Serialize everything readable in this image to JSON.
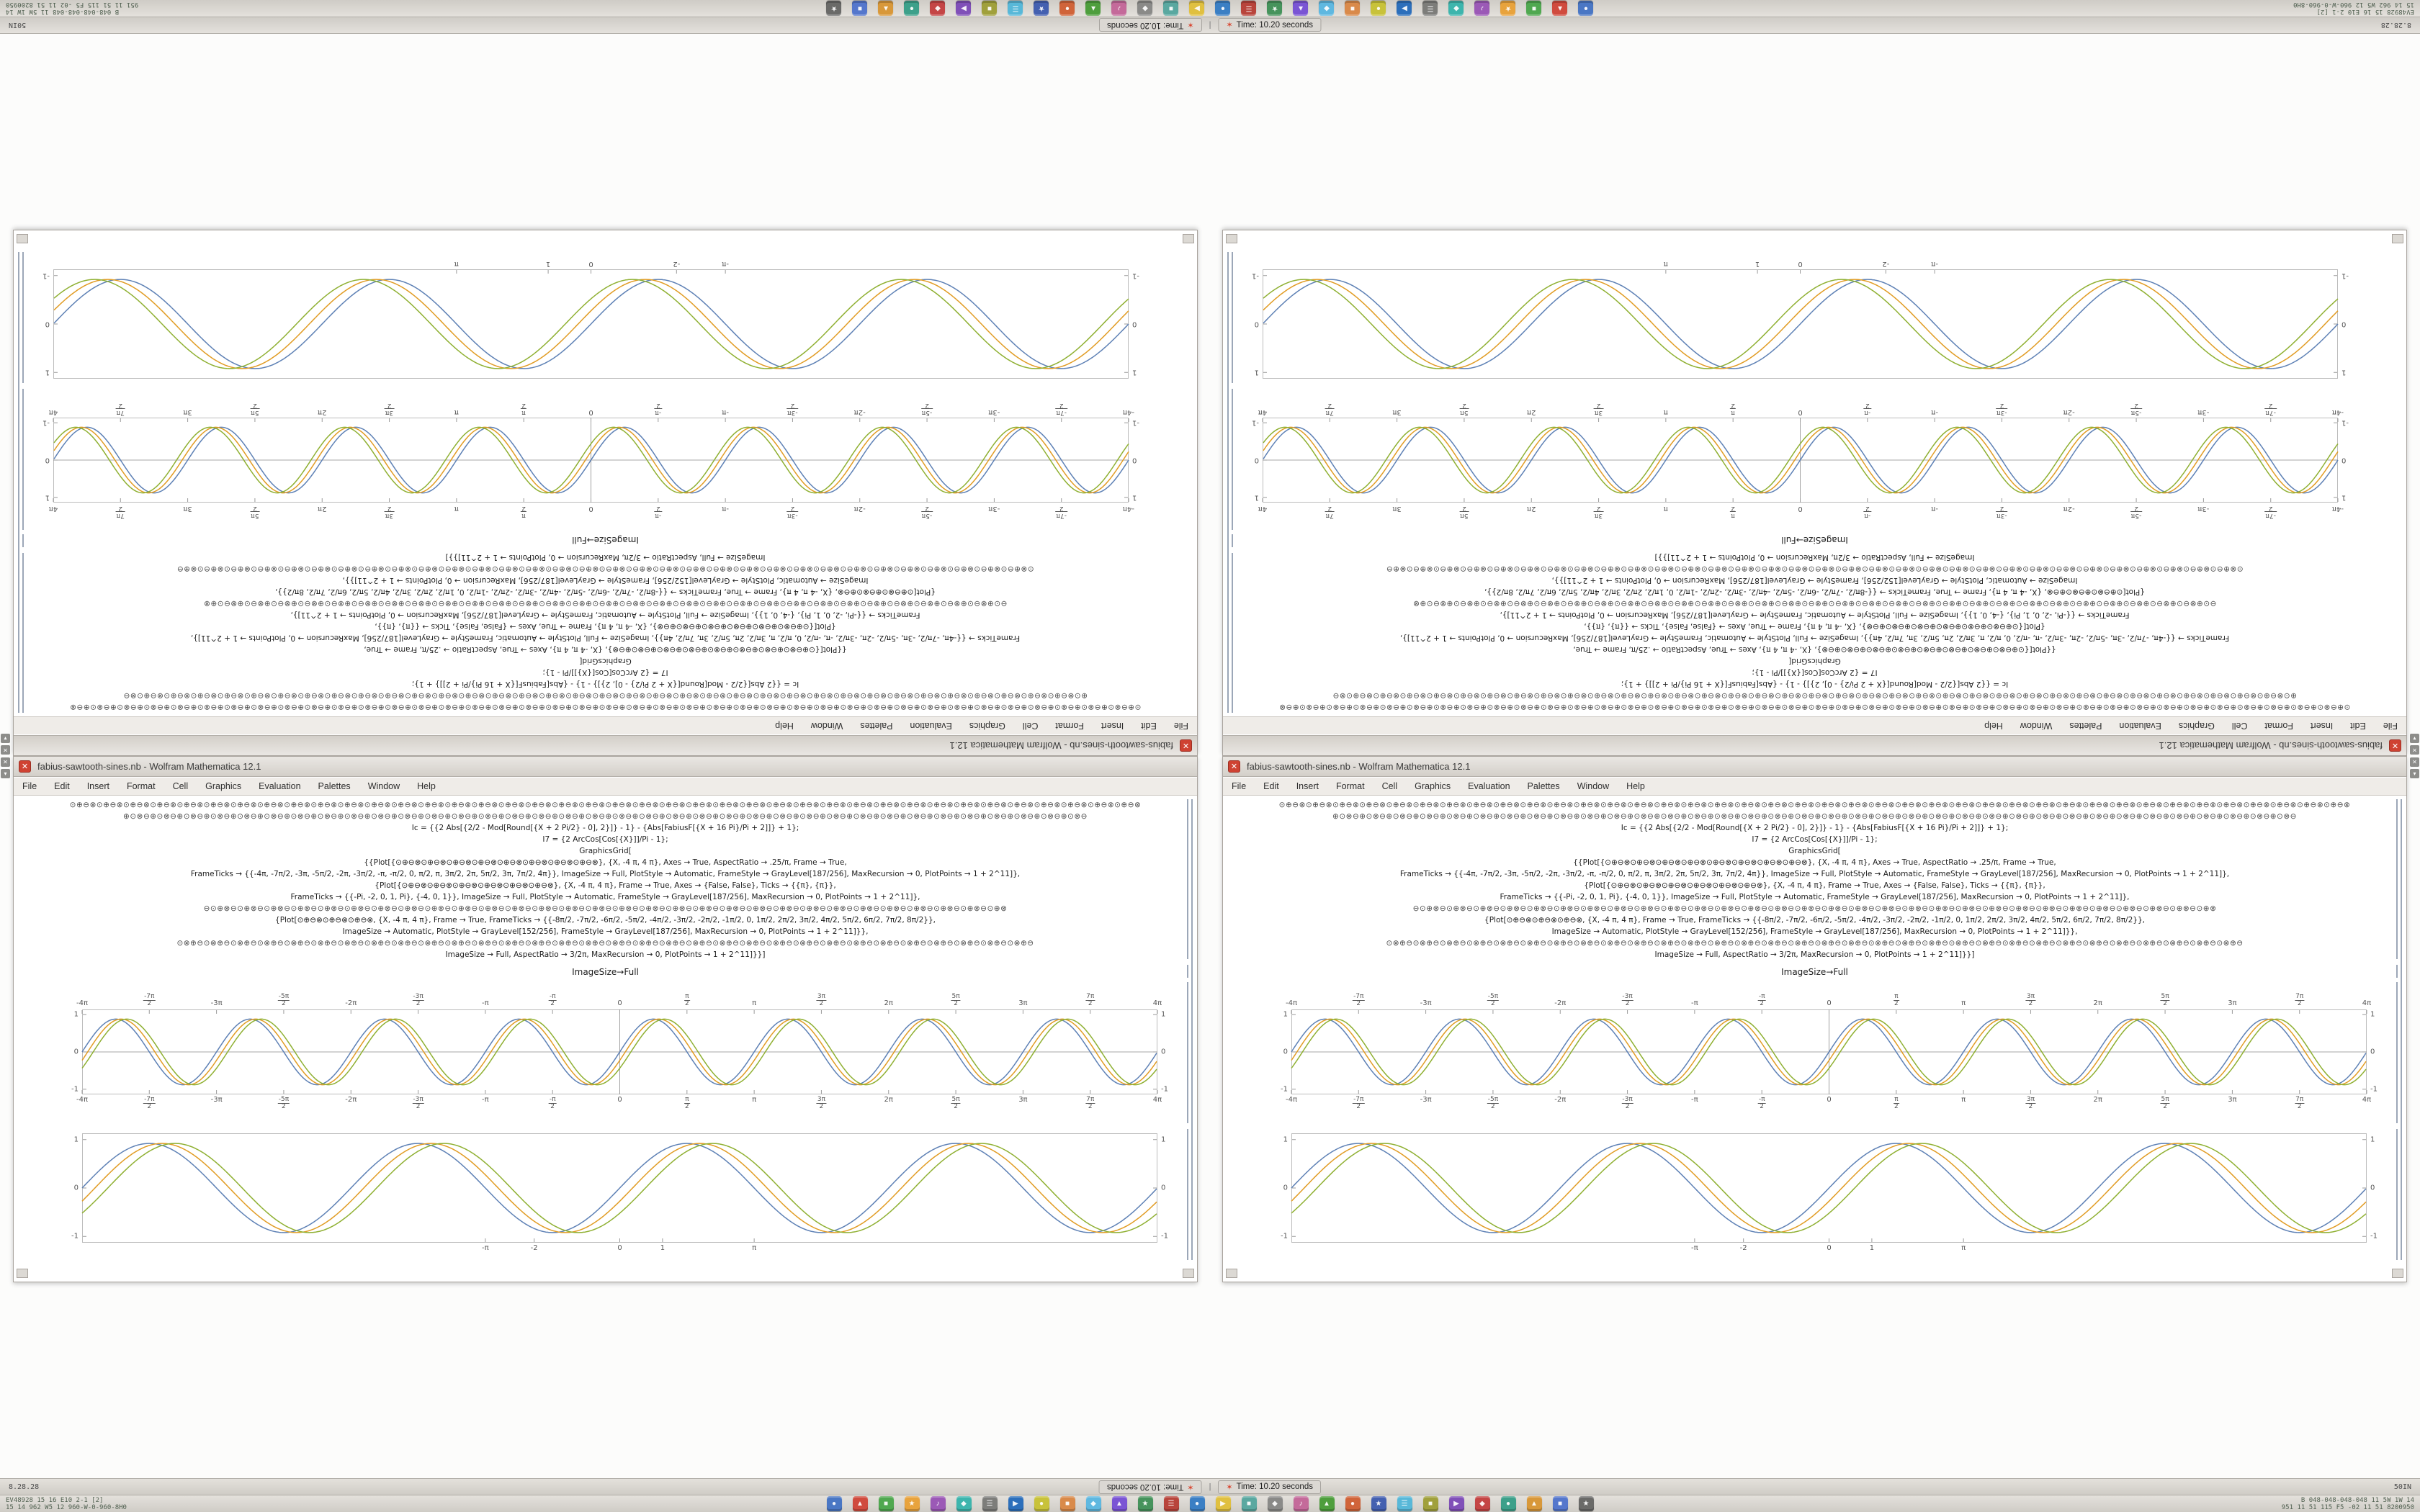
{
  "colors": {
    "desktop_bg": "#fcfcfb",
    "close_button": "#cf4232",
    "frame_gray": "#bcbcbc",
    "series_blue": "#5e81b5",
    "series_orange": "#e19c24",
    "series_olive": "#8fb032"
  },
  "window": {
    "title": "fabius-sawtooth-sines.nb - Wolfram Mathematica 12.1",
    "close_glyph": "✕",
    "menu_items": [
      "File",
      "Edit",
      "Insert",
      "Format",
      "Cell",
      "Graphics",
      "Evaluation",
      "Palettes",
      "Window",
      "Help"
    ],
    "code_cell": {
      "lines": [
        {
          "text": "⊙⊕⊖⊗",
          "repeat": 40,
          "dim": true
        },
        {
          "text": "⊕⊙⊗⊖",
          "repeat": 36,
          "dim": true
        },
        {
          "text": "Ic = {{2 Abs[{2/2 - Mod[Round[{X + 2 Pi/2} - 0], 2}]} - 1} - {Abs[FabiusF[{X + 16 Pi}/Pi + 2]]} + 1};"
        },
        {
          "text": "I7 = {2 ArcCos[Cos[{X}]]/Pi - 1};"
        },
        {
          "text": "GraphicsGrid["
        },
        {
          "text": "{{Plot[{⊙⊕⊖⊗⊙⊕⊖⊗⊙⊕⊖⊗⊙⊕⊖⊗⊙⊕⊖⊗⊙⊕⊖⊗⊙⊕⊖⊗⊙⊕⊖⊗}, {X, -4 π, 4 π}, Axes → True, AspectRatio → .25/π, Frame → True,"
        },
        {
          "text": "FrameTicks → {{-4π, -7π/2, -3π, -5π/2, -2π, -3π/2, -π, -π/2, 0, π/2, π, 3π/2, 2π, 5π/2, 3π, 7π/2, 4π}}, ImageSize → Full, PlotStyle → Automatic, FrameStyle → GrayLevel[187/256], MaxRecursion → 0, PlotPoints → 1 + 2^11]},"
        },
        {
          "text": "{Plot[{⊙⊕⊖⊗⊙⊕⊖⊗⊙⊕⊖⊗⊙⊕⊖⊗⊙⊕⊖⊗⊙⊕⊖⊗}, {X, -4 π, 4 π}, Frame → True, Axes → {False, False}, Ticks → {{π}, {π}},"
        },
        {
          "text": "FrameTicks → {{-Pi, -2, 0, 1, Pi}, {-4, 0, 1}}, ImageSize → Full, PlotStyle → Automatic, FrameStyle → GrayLevel[187/256], MaxRecursion → 0, PlotPoints → 1 + 2^11]},"
        },
        {
          "text": "⊖⊙⊕⊗",
          "repeat": 30,
          "dim": true
        },
        {
          "text": "{Plot[⊙⊕⊖⊗⊙⊕⊖⊗⊙⊕⊖⊗, {X, -4 π, 4 π}, Frame → True, FrameTicks → {{-8π/2, -7π/2, -6π/2, -5π/2, -4π/2, -3π/2, -2π/2, -1π/2, 0, 1π/2, 2π/2, 3π/2, 4π/2, 5π/2, 6π/2, 7π/2, 8π/2}},"
        },
        {
          "text": "ImageSize → Automatic, PlotStyle → GrayLevel[152/256], FrameStyle → GrayLevel[187/256], MaxRecursion → 0, PlotPoints → 1 + 2^11]}},"
        },
        {
          "text": "⊙⊗⊕⊖",
          "repeat": 32,
          "dim": true
        },
        {
          "text": "ImageSize → Full, AspectRatio → 3/2π, MaxRecursion → 0, PlotPoints → 1 + 2^11]}}]"
        }
      ]
    },
    "label_cell": "ImageSize→Full"
  },
  "taskbar": {
    "title_row": {
      "left_text": "8.28.28",
      "right_text": "50IN",
      "rotated_window_title": "Time: 10.20 seconds",
      "window_title": "Time: 10.20 seconds",
      "separator": "|",
      "window_button_icon": "✶"
    },
    "status_left": "EV48928 15 16 E10 2-1 [2]\n15 14 962 W5 12 960-W-0-960-8H0",
    "status_right": "B 048-048-048-048 11 5W 1W 14\n951 11 51 115 F5 -02 11 51 8200950",
    "edge_panel": [
      {
        "name": "close-icon",
        "glyph": "✕"
      },
      {
        "name": "chevron-down-icon",
        "glyph": "▾"
      }
    ],
    "icons": [
      {
        "name": "app-icon-1",
        "color": "#4a77c4",
        "glyph": "●"
      },
      {
        "name": "app-icon-2",
        "color": "#d04b3e",
        "glyph": "▲"
      },
      {
        "name": "app-icon-3",
        "color": "#50a850",
        "glyph": "■"
      },
      {
        "name": "app-icon-4",
        "color": "#e8a33d",
        "glyph": "★"
      },
      {
        "name": "app-icon-5",
        "color": "#9b59b6",
        "glyph": "♪"
      },
      {
        "name": "app-icon-6",
        "color": "#3db5ad",
        "glyph": "◆"
      },
      {
        "name": "app-icon-7",
        "color": "#7d7d7a",
        "glyph": "☰"
      },
      {
        "name": "app-icon-8",
        "color": "#2c6fbb",
        "glyph": "▶"
      },
      {
        "name": "app-icon-9",
        "color": "#c8c23a",
        "glyph": "●"
      },
      {
        "name": "app-icon-10",
        "color": "#d98a4a",
        "glyph": "■"
      },
      {
        "name": "app-icon-11",
        "color": "#5fb8e0",
        "glyph": "◆"
      },
      {
        "name": "app-icon-12",
        "color": "#7a55d4",
        "glyph": "▲"
      },
      {
        "name": "app-icon-13",
        "color": "#46935c",
        "glyph": "★"
      },
      {
        "name": "app-icon-14",
        "color": "#b8453c",
        "glyph": "☰"
      },
      {
        "name": "app-icon-15",
        "color": "#3b7fc4",
        "glyph": "●"
      },
      {
        "name": "app-icon-16",
        "color": "#e0c040",
        "glyph": "▶"
      },
      {
        "name": "app-icon-17",
        "color": "#5aa8a0",
        "glyph": "■"
      },
      {
        "name": "app-icon-18",
        "color": "#8a8a88",
        "glyph": "◆"
      },
      {
        "name": "app-icon-19",
        "color": "#c46a9a",
        "glyph": "♪"
      },
      {
        "name": "app-icon-20",
        "color": "#4e9e3d",
        "glyph": "▲"
      },
      {
        "name": "app-icon-21",
        "color": "#d0643a",
        "glyph": "●"
      },
      {
        "name": "app-icon-22",
        "color": "#4460b0",
        "glyph": "★"
      },
      {
        "name": "app-icon-23",
        "color": "#58b8d8",
        "glyph": "☰"
      },
      {
        "name": "app-icon-24",
        "color": "#a0a03c",
        "glyph": "■"
      },
      {
        "name": "app-icon-25",
        "color": "#8050b8",
        "glyph": "▶"
      },
      {
        "name": "app-icon-26",
        "color": "#c44545",
        "glyph": "◆"
      },
      {
        "name": "app-icon-27",
        "color": "#3da08a",
        "glyph": "●"
      },
      {
        "name": "app-icon-28",
        "color": "#d8983a",
        "glyph": "▲"
      },
      {
        "name": "app-icon-29",
        "color": "#5577cc",
        "glyph": "■"
      },
      {
        "name": "app-icon-30",
        "color": "#6a6a68",
        "glyph": "★"
      }
    ]
  },
  "chart_data": [
    {
      "type": "line",
      "title": "Upper framed plot: three phase-shifted waves, period π over [-4π, 4π] (8 periods), π/2 frame ticks top and bottom",
      "xlabel": "",
      "ylabel": "",
      "x_range": [
        -12.566,
        12.566
      ],
      "y_range": [
        -1.1,
        1.1
      ],
      "frame": true,
      "axes": true,
      "grid": false,
      "legend": "none",
      "x_ticks_on": "top+bottom",
      "x_ticks": [
        {
          "label": "-4π",
          "x": -12.566
        },
        {
          "label": "-7π/2",
          "x": -10.996
        },
        {
          "label": "-3π",
          "x": -9.425
        },
        {
          "label": "-5π/2",
          "x": -7.854
        },
        {
          "label": "-2π",
          "x": -6.283
        },
        {
          "label": "-3π/2",
          "x": -4.712
        },
        {
          "label": "-π",
          "x": -3.1416
        },
        {
          "label": "-π/2",
          "x": -1.5708
        },
        {
          "label": "0",
          "x": 0
        },
        {
          "label": "π/2",
          "x": 1.5708
        },
        {
          "label": "π",
          "x": 3.1416
        },
        {
          "label": "3π/2",
          "x": 4.712
        },
        {
          "label": "2π",
          "x": 6.283
        },
        {
          "label": "5π/2",
          "x": 7.854
        },
        {
          "label": "3π",
          "x": 9.425
        },
        {
          "label": "7π/2",
          "x": 10.996
        },
        {
          "label": "4π",
          "x": 12.566
        }
      ],
      "y_ticks": [
        {
          "label": "1",
          "y": 1
        },
        {
          "label": "0",
          "y": 0
        },
        {
          "label": "-1",
          "y": -1
        }
      ],
      "series": [
        {
          "name": "blue wave",
          "color": "#5e81b5",
          "period": 3.1416,
          "phase": 0,
          "amplitude": 0.88
        },
        {
          "name": "orange wave",
          "color": "#e19c24",
          "period": 3.1416,
          "phase": 0.13,
          "amplitude": 0.88
        },
        {
          "name": "olive wave",
          "color": "#8fb032",
          "period": 3.1416,
          "phase": 0.26,
          "amplitude": 0.88
        }
      ]
    },
    {
      "type": "line",
      "title": "Lower framed plot: three phase-shifted waves, period 2π over [-4π, 4π] (4 periods), sparse center ticks",
      "xlabel": "",
      "ylabel": "",
      "x_range": [
        -12.566,
        12.566
      ],
      "y_range": [
        -1.1,
        1.1
      ],
      "frame": true,
      "axes": false,
      "grid": false,
      "legend": "none",
      "x_ticks_on": "bottom",
      "x_ticks": [
        {
          "label": "-π",
          "x": -3.1416
        },
        {
          "label": "-2",
          "x": -2
        },
        {
          "label": "0",
          "x": 0
        },
        {
          "label": "1",
          "x": 1
        },
        {
          "label": "π",
          "x": 3.1416
        }
      ],
      "y_ticks": [
        {
          "label": "1",
          "y": 1
        },
        {
          "label": "0",
          "y": 0
        },
        {
          "label": "-1",
          "y": -1
        }
      ],
      "series": [
        {
          "name": "blue wave",
          "color": "#5e81b5",
          "period": 6.2832,
          "phase": 0,
          "amplitude": 0.92
        },
        {
          "name": "orange wave",
          "color": "#e19c24",
          "period": 6.2832,
          "phase": 0.3,
          "amplitude": 0.92
        },
        {
          "name": "olive wave",
          "color": "#8fb032",
          "period": 6.2832,
          "phase": 0.6,
          "amplitude": 0.92
        }
      ]
    }
  ]
}
